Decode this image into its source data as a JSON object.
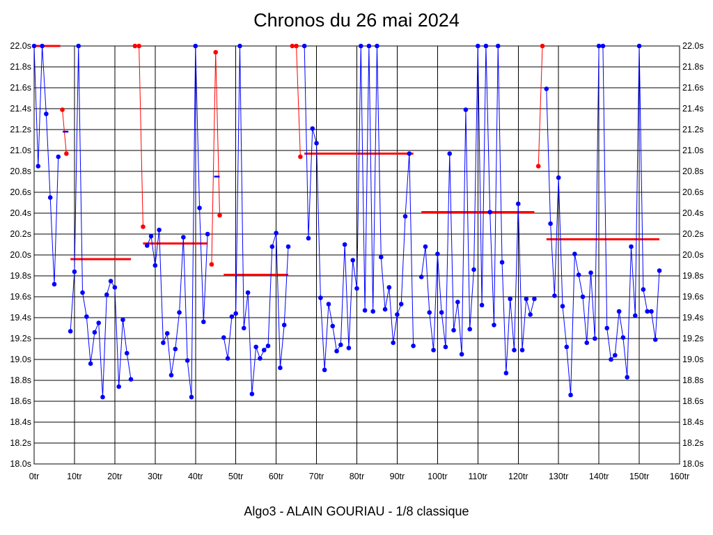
{
  "chart_data": {
    "type": "line",
    "title": "Chronos du 26 mai 2024",
    "subtitle": "Algo3 - ALAIN GOURIAU - 1/8 classique",
    "xlim": [
      0,
      160
    ],
    "ylim": [
      18.0,
      22.0
    ],
    "x_ticks": [
      0,
      10,
      20,
      30,
      40,
      50,
      60,
      70,
      80,
      90,
      100,
      110,
      120,
      130,
      140,
      150,
      160
    ],
    "x_tick_labels": [
      "0tr",
      "10tr",
      "20tr",
      "30tr",
      "40tr",
      "50tr",
      "60tr",
      "70tr",
      "80tr",
      "90tr",
      "100tr",
      "110tr",
      "120tr",
      "130tr",
      "140tr",
      "150tr",
      "160tr"
    ],
    "y_ticks": [
      18.0,
      18.2,
      18.4,
      18.6,
      18.8,
      19.0,
      19.2,
      19.4,
      19.6,
      19.8,
      20.0,
      20.2,
      20.4,
      20.6,
      20.8,
      21.0,
      21.2,
      21.4,
      21.6,
      21.8,
      22.0
    ],
    "y_tick_labels": [
      "18.0s",
      "18.2s",
      "18.4s",
      "18.6s",
      "18.8s",
      "19.0s",
      "19.2s",
      "19.4s",
      "19.6s",
      "19.8s",
      "20.0s",
      "20.2s",
      "20.4s",
      "20.6s",
      "20.8s",
      "21.0s",
      "21.2s",
      "21.4s",
      "21.6s",
      "21.8s",
      "22.0s"
    ],
    "grid": true,
    "colors": {
      "main": "#0000ff",
      "penalty": "#ff0000",
      "average": "#ff0000",
      "grid": "#000000"
    },
    "series": [
      {
        "name": "tours",
        "color": "#0000ff",
        "points": [
          [
            0,
            22.0
          ],
          [
            1,
            20.85
          ],
          [
            2,
            22.0
          ],
          [
            3,
            21.35
          ],
          [
            4,
            20.55
          ],
          [
            5,
            19.72
          ],
          [
            6,
            20.94
          ],
          [
            9,
            19.27
          ],
          [
            10,
            19.84
          ],
          [
            11,
            22.0
          ],
          [
            12,
            19.64
          ],
          [
            13,
            19.41
          ],
          [
            14,
            18.96
          ],
          [
            15,
            19.26
          ],
          [
            16,
            19.35
          ],
          [
            17,
            18.64
          ],
          [
            18,
            19.62
          ],
          [
            19,
            19.75
          ],
          [
            20,
            19.69
          ],
          [
            21,
            18.74
          ],
          [
            22,
            19.38
          ],
          [
            23,
            19.06
          ],
          [
            24,
            18.81
          ],
          [
            28,
            20.09
          ],
          [
            29,
            20.18
          ],
          [
            30,
            19.9
          ],
          [
            31,
            20.24
          ],
          [
            32,
            19.16
          ],
          [
            33,
            19.25
          ],
          [
            34,
            18.85
          ],
          [
            35,
            19.1
          ],
          [
            36,
            19.45
          ],
          [
            37,
            20.17
          ],
          [
            38,
            18.99
          ],
          [
            39,
            18.64
          ],
          [
            40,
            22.0
          ],
          [
            41,
            20.45
          ],
          [
            42,
            19.36
          ],
          [
            43,
            20.2
          ],
          [
            47,
            19.21
          ],
          [
            48,
            19.01
          ],
          [
            49,
            19.41
          ],
          [
            50,
            19.44
          ],
          [
            51,
            22.0
          ],
          [
            52,
            19.3
          ],
          [
            53,
            19.64
          ],
          [
            54,
            18.67
          ],
          [
            55,
            19.12
          ],
          [
            56,
            19.01
          ],
          [
            57,
            19.09
          ],
          [
            58,
            19.13
          ],
          [
            59,
            20.08
          ],
          [
            60,
            20.21
          ],
          [
            61,
            18.92
          ],
          [
            62,
            19.33
          ],
          [
            63,
            20.08
          ],
          [
            67,
            22.0
          ],
          [
            68,
            20.16
          ],
          [
            69,
            21.21
          ],
          [
            70,
            21.07
          ],
          [
            71,
            19.59
          ],
          [
            72,
            18.9
          ],
          [
            73,
            19.53
          ],
          [
            74,
            19.32
          ],
          [
            75,
            19.08
          ],
          [
            76,
            19.14
          ],
          [
            77,
            20.1
          ],
          [
            78,
            19.11
          ],
          [
            79,
            19.95
          ],
          [
            80,
            19.68
          ],
          [
            81,
            22.0
          ],
          [
            82,
            19.47
          ],
          [
            83,
            22.0
          ],
          [
            84,
            19.46
          ],
          [
            85,
            22.0
          ],
          [
            86,
            19.98
          ],
          [
            87,
            19.48
          ],
          [
            88,
            19.69
          ],
          [
            89,
            19.16
          ],
          [
            90,
            19.43
          ],
          [
            91,
            19.53
          ],
          [
            92,
            20.37
          ],
          [
            93,
            20.97
          ],
          [
            94,
            19.13
          ],
          [
            96,
            19.79
          ],
          [
            97,
            20.08
          ],
          [
            98,
            19.45
          ],
          [
            99,
            19.09
          ],
          [
            100,
            20.01
          ],
          [
            101,
            19.45
          ],
          [
            102,
            19.12
          ],
          [
            103,
            20.97
          ],
          [
            104,
            19.28
          ],
          [
            105,
            19.55
          ],
          [
            106,
            19.05
          ],
          [
            107,
            21.39
          ],
          [
            108,
            19.29
          ],
          [
            109,
            19.86
          ],
          [
            110,
            22.0
          ],
          [
            111,
            19.52
          ],
          [
            112,
            22.0
          ],
          [
            113,
            20.41
          ],
          [
            114,
            19.33
          ],
          [
            115,
            22.0
          ],
          [
            116,
            19.93
          ],
          [
            117,
            18.87
          ],
          [
            118,
            19.58
          ],
          [
            119,
            19.09
          ],
          [
            120,
            20.49
          ],
          [
            121,
            19.09
          ],
          [
            122,
            19.58
          ],
          [
            123,
            19.43
          ],
          [
            124,
            19.58
          ],
          [
            127,
            21.59
          ],
          [
            128,
            20.3
          ],
          [
            129,
            19.61
          ],
          [
            130,
            20.74
          ],
          [
            131,
            19.51
          ],
          [
            132,
            19.12
          ],
          [
            133,
            18.66
          ],
          [
            134,
            20.01
          ],
          [
            135,
            19.81
          ],
          [
            136,
            19.6
          ],
          [
            137,
            19.16
          ],
          [
            138,
            19.83
          ],
          [
            139,
            19.2
          ],
          [
            140,
            22.0
          ],
          [
            141,
            22.0
          ],
          [
            142,
            19.3
          ],
          [
            143,
            19.0
          ],
          [
            144,
            19.04
          ],
          [
            145,
            19.46
          ],
          [
            146,
            19.21
          ],
          [
            147,
            18.83
          ],
          [
            148,
            20.08
          ],
          [
            149,
            19.42
          ],
          [
            150,
            22.0
          ],
          [
            151,
            19.67
          ],
          [
            152,
            19.46
          ],
          [
            153,
            19.46
          ],
          [
            154,
            19.19
          ],
          [
            155,
            19.85
          ]
        ]
      },
      {
        "name": "penalites",
        "color": "#ff0000",
        "segments": [
          [
            [
              7,
              21.39
            ],
            [
              8,
              20.97
            ]
          ],
          [
            [
              25,
              22.0
            ],
            [
              26,
              22.0
            ],
            [
              27,
              20.27
            ]
          ],
          [
            [
              44,
              19.91
            ],
            [
              45,
              21.94
            ],
            [
              46,
              20.38
            ]
          ],
          [
            [
              64,
              22.0
            ],
            [
              65,
              22.0
            ],
            [
              66,
              20.94
            ]
          ],
          [
            [
              125,
              20.85
            ],
            [
              126,
              22.0
            ]
          ]
        ]
      }
    ],
    "averages": [
      {
        "x": [
          0,
          6.5
        ],
        "y": 22.0
      },
      {
        "x": [
          9,
          24
        ],
        "y": 19.96
      },
      {
        "x": [
          27,
          43
        ],
        "y": 20.11
      },
      {
        "x": [
          47,
          63
        ],
        "y": 19.81
      },
      {
        "x": [
          67,
          94
        ],
        "y": 20.97
      },
      {
        "x": [
          96,
          124
        ],
        "y": 20.41
      },
      {
        "x": [
          127,
          155
        ],
        "y": 20.15
      }
    ],
    "markers": [
      {
        "x": 7.8,
        "y": 21.18
      },
      {
        "x": 45.3,
        "y": 20.75
      }
    ]
  }
}
